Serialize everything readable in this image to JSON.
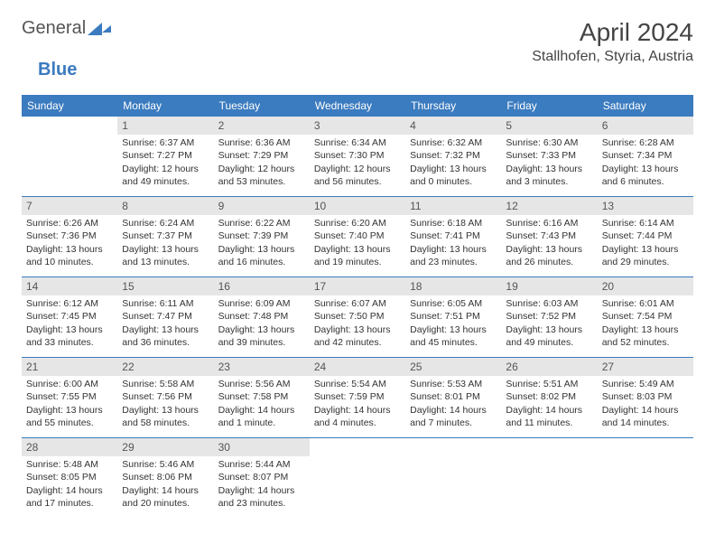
{
  "logo": {
    "part1": "General",
    "part2": "Blue"
  },
  "title": "April 2024",
  "location": "Stallhofen, Styria, Austria",
  "colors": {
    "brand": "#3b7bbf",
    "dayHeaderBg": "#e6e6e6"
  },
  "dayHeaders": [
    "Sunday",
    "Monday",
    "Tuesday",
    "Wednesday",
    "Thursday",
    "Friday",
    "Saturday"
  ],
  "weeks": [
    [
      {
        "n": "",
        "sunrise": "",
        "sunset": "",
        "daylight1": "",
        "daylight2": "",
        "empty": true
      },
      {
        "n": "1",
        "sunrise": "Sunrise: 6:37 AM",
        "sunset": "Sunset: 7:27 PM",
        "daylight1": "Daylight: 12 hours",
        "daylight2": "and 49 minutes."
      },
      {
        "n": "2",
        "sunrise": "Sunrise: 6:36 AM",
        "sunset": "Sunset: 7:29 PM",
        "daylight1": "Daylight: 12 hours",
        "daylight2": "and 53 minutes."
      },
      {
        "n": "3",
        "sunrise": "Sunrise: 6:34 AM",
        "sunset": "Sunset: 7:30 PM",
        "daylight1": "Daylight: 12 hours",
        "daylight2": "and 56 minutes."
      },
      {
        "n": "4",
        "sunrise": "Sunrise: 6:32 AM",
        "sunset": "Sunset: 7:32 PM",
        "daylight1": "Daylight: 13 hours",
        "daylight2": "and 0 minutes."
      },
      {
        "n": "5",
        "sunrise": "Sunrise: 6:30 AM",
        "sunset": "Sunset: 7:33 PM",
        "daylight1": "Daylight: 13 hours",
        "daylight2": "and 3 minutes."
      },
      {
        "n": "6",
        "sunrise": "Sunrise: 6:28 AM",
        "sunset": "Sunset: 7:34 PM",
        "daylight1": "Daylight: 13 hours",
        "daylight2": "and 6 minutes."
      }
    ],
    [
      {
        "n": "7",
        "sunrise": "Sunrise: 6:26 AM",
        "sunset": "Sunset: 7:36 PM",
        "daylight1": "Daylight: 13 hours",
        "daylight2": "and 10 minutes."
      },
      {
        "n": "8",
        "sunrise": "Sunrise: 6:24 AM",
        "sunset": "Sunset: 7:37 PM",
        "daylight1": "Daylight: 13 hours",
        "daylight2": "and 13 minutes."
      },
      {
        "n": "9",
        "sunrise": "Sunrise: 6:22 AM",
        "sunset": "Sunset: 7:39 PM",
        "daylight1": "Daylight: 13 hours",
        "daylight2": "and 16 minutes."
      },
      {
        "n": "10",
        "sunrise": "Sunrise: 6:20 AM",
        "sunset": "Sunset: 7:40 PM",
        "daylight1": "Daylight: 13 hours",
        "daylight2": "and 19 minutes."
      },
      {
        "n": "11",
        "sunrise": "Sunrise: 6:18 AM",
        "sunset": "Sunset: 7:41 PM",
        "daylight1": "Daylight: 13 hours",
        "daylight2": "and 23 minutes."
      },
      {
        "n": "12",
        "sunrise": "Sunrise: 6:16 AM",
        "sunset": "Sunset: 7:43 PM",
        "daylight1": "Daylight: 13 hours",
        "daylight2": "and 26 minutes."
      },
      {
        "n": "13",
        "sunrise": "Sunrise: 6:14 AM",
        "sunset": "Sunset: 7:44 PM",
        "daylight1": "Daylight: 13 hours",
        "daylight2": "and 29 minutes."
      }
    ],
    [
      {
        "n": "14",
        "sunrise": "Sunrise: 6:12 AM",
        "sunset": "Sunset: 7:45 PM",
        "daylight1": "Daylight: 13 hours",
        "daylight2": "and 33 minutes."
      },
      {
        "n": "15",
        "sunrise": "Sunrise: 6:11 AM",
        "sunset": "Sunset: 7:47 PM",
        "daylight1": "Daylight: 13 hours",
        "daylight2": "and 36 minutes."
      },
      {
        "n": "16",
        "sunrise": "Sunrise: 6:09 AM",
        "sunset": "Sunset: 7:48 PM",
        "daylight1": "Daylight: 13 hours",
        "daylight2": "and 39 minutes."
      },
      {
        "n": "17",
        "sunrise": "Sunrise: 6:07 AM",
        "sunset": "Sunset: 7:50 PM",
        "daylight1": "Daylight: 13 hours",
        "daylight2": "and 42 minutes."
      },
      {
        "n": "18",
        "sunrise": "Sunrise: 6:05 AM",
        "sunset": "Sunset: 7:51 PM",
        "daylight1": "Daylight: 13 hours",
        "daylight2": "and 45 minutes."
      },
      {
        "n": "19",
        "sunrise": "Sunrise: 6:03 AM",
        "sunset": "Sunset: 7:52 PM",
        "daylight1": "Daylight: 13 hours",
        "daylight2": "and 49 minutes."
      },
      {
        "n": "20",
        "sunrise": "Sunrise: 6:01 AM",
        "sunset": "Sunset: 7:54 PM",
        "daylight1": "Daylight: 13 hours",
        "daylight2": "and 52 minutes."
      }
    ],
    [
      {
        "n": "21",
        "sunrise": "Sunrise: 6:00 AM",
        "sunset": "Sunset: 7:55 PM",
        "daylight1": "Daylight: 13 hours",
        "daylight2": "and 55 minutes."
      },
      {
        "n": "22",
        "sunrise": "Sunrise: 5:58 AM",
        "sunset": "Sunset: 7:56 PM",
        "daylight1": "Daylight: 13 hours",
        "daylight2": "and 58 minutes."
      },
      {
        "n": "23",
        "sunrise": "Sunrise: 5:56 AM",
        "sunset": "Sunset: 7:58 PM",
        "daylight1": "Daylight: 14 hours",
        "daylight2": "and 1 minute."
      },
      {
        "n": "24",
        "sunrise": "Sunrise: 5:54 AM",
        "sunset": "Sunset: 7:59 PM",
        "daylight1": "Daylight: 14 hours",
        "daylight2": "and 4 minutes."
      },
      {
        "n": "25",
        "sunrise": "Sunrise: 5:53 AM",
        "sunset": "Sunset: 8:01 PM",
        "daylight1": "Daylight: 14 hours",
        "daylight2": "and 7 minutes."
      },
      {
        "n": "26",
        "sunrise": "Sunrise: 5:51 AM",
        "sunset": "Sunset: 8:02 PM",
        "daylight1": "Daylight: 14 hours",
        "daylight2": "and 11 minutes."
      },
      {
        "n": "27",
        "sunrise": "Sunrise: 5:49 AM",
        "sunset": "Sunset: 8:03 PM",
        "daylight1": "Daylight: 14 hours",
        "daylight2": "and 14 minutes."
      }
    ],
    [
      {
        "n": "28",
        "sunrise": "Sunrise: 5:48 AM",
        "sunset": "Sunset: 8:05 PM",
        "daylight1": "Daylight: 14 hours",
        "daylight2": "and 17 minutes."
      },
      {
        "n": "29",
        "sunrise": "Sunrise: 5:46 AM",
        "sunset": "Sunset: 8:06 PM",
        "daylight1": "Daylight: 14 hours",
        "daylight2": "and 20 minutes."
      },
      {
        "n": "30",
        "sunrise": "Sunrise: 5:44 AM",
        "sunset": "Sunset: 8:07 PM",
        "daylight1": "Daylight: 14 hours",
        "daylight2": "and 23 minutes."
      },
      {
        "n": "",
        "sunrise": "",
        "sunset": "",
        "daylight1": "",
        "daylight2": "",
        "empty": true
      },
      {
        "n": "",
        "sunrise": "",
        "sunset": "",
        "daylight1": "",
        "daylight2": "",
        "empty": true
      },
      {
        "n": "",
        "sunrise": "",
        "sunset": "",
        "daylight1": "",
        "daylight2": "",
        "empty": true
      },
      {
        "n": "",
        "sunrise": "",
        "sunset": "",
        "daylight1": "",
        "daylight2": "",
        "empty": true
      }
    ]
  ]
}
